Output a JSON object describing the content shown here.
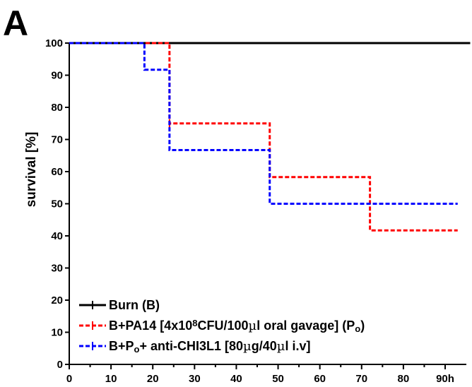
{
  "panel_label": "A",
  "chart_data": {
    "type": "line",
    "step": true,
    "ylabel": "survival [%]",
    "xlabel": "",
    "xlim": [
      0,
      95
    ],
    "ylim": [
      0,
      100
    ],
    "x_ticks": [
      0,
      10,
      20,
      30,
      40,
      50,
      60,
      70,
      80,
      90
    ],
    "x_tick_labels": [
      "0",
      "10",
      "20",
      "30",
      "40",
      "50",
      "60",
      "70",
      "80",
      "90h"
    ],
    "y_ticks": [
      0,
      10,
      20,
      30,
      40,
      50,
      60,
      70,
      80,
      90,
      100
    ],
    "y_tick_labels": [
      "0",
      "10",
      "20",
      "30",
      "40",
      "50",
      "60",
      "70",
      "80",
      "90",
      "100"
    ],
    "grid": false,
    "legend_position": "bottom-left",
    "series": [
      {
        "name": "Burn (B)",
        "color": "#000000",
        "style": "solid",
        "x": [
          0,
          96
        ],
        "y": [
          100,
          100
        ],
        "censor": []
      },
      {
        "name": "B+PA14 [4x10^8CFU/100µl oral gavage] (Po)",
        "color": "#ff0000",
        "style": "dashed",
        "x": [
          0,
          24,
          48,
          72,
          93
        ],
        "y": [
          100,
          75,
          58.3,
          41.7,
          41.7
        ],
        "censor": [
          [
            24,
            75
          ]
        ]
      },
      {
        "name": "B+Po+ anti-CHI3L1 [80µg/40µl i.v]",
        "color": "#0000ff",
        "style": "dashed",
        "x": [
          0,
          18,
          24,
          48,
          93
        ],
        "y": [
          100,
          91.7,
          66.7,
          50,
          50
        ],
        "censor": []
      }
    ],
    "legend_rich": [
      [
        {
          "t": "Burn (B)"
        }
      ],
      [
        {
          "t": "B+PA14 [4x10"
        },
        {
          "t": "8",
          "sup": true
        },
        {
          "t": "CFU/100"
        },
        {
          "t": "µ",
          "serif": true
        },
        {
          "t": "l oral gavage] (P"
        },
        {
          "t": "o",
          "sub": true
        },
        {
          "t": ")"
        }
      ],
      [
        {
          "t": "B+P"
        },
        {
          "t": "o",
          "sub": true
        },
        {
          "t": "+ anti-CHI3L1 [80"
        },
        {
          "t": "µ",
          "serif": true
        },
        {
          "t": "g/40"
        },
        {
          "t": "µ",
          "serif": true
        },
        {
          "t": "l i.v]"
        }
      ]
    ]
  }
}
